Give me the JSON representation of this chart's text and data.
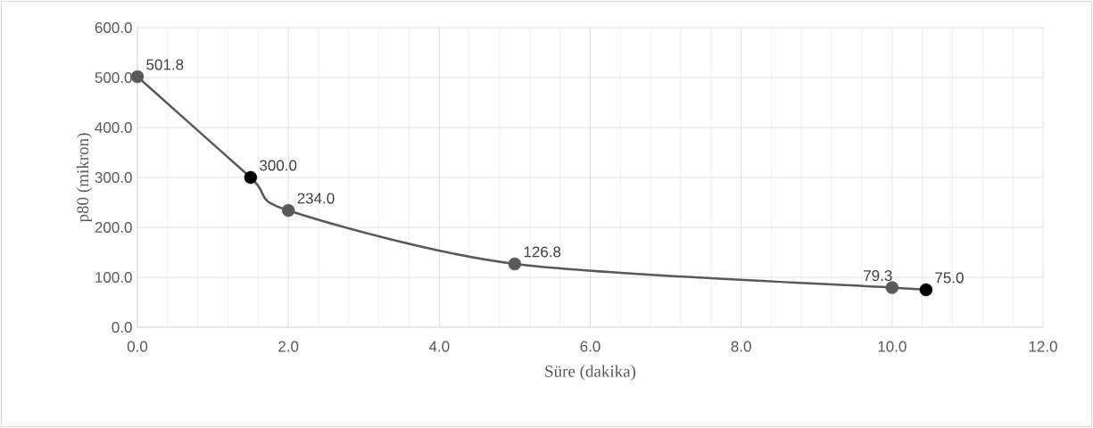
{
  "chart_data": {
    "type": "line",
    "xlabel": "Süre (dakika)",
    "ylabel": "p80 (mikron)",
    "x": [
      0,
      1.5,
      2,
      5,
      10,
      10.45
    ],
    "values": [
      501.8,
      300.0,
      234.0,
      126.8,
      79.3,
      75.0
    ],
    "value_labels": [
      "501.8",
      "300.0",
      "234.0",
      "126.8",
      "79.3",
      "75.0"
    ],
    "color": "#595959",
    "colors": [
      "#595959",
      "#000000",
      "#595959",
      "#595959",
      "#595959",
      "#000000"
    ],
    "marker": "circle",
    "xlim": [
      0,
      12
    ],
    "ylim": [
      0,
      600
    ],
    "xticks": [
      {
        "value": 0,
        "label": "0.0"
      },
      {
        "value": 2,
        "label": "2.0"
      },
      {
        "value": 4,
        "label": "4.0"
      },
      {
        "value": 6,
        "label": "6.0"
      },
      {
        "value": 8,
        "label": "8.0"
      },
      {
        "value": 10,
        "label": "10.0"
      },
      {
        "value": 12,
        "label": "12.0"
      }
    ],
    "yticks": [
      {
        "value": 0,
        "label": "0.0"
      },
      {
        "value": 100,
        "label": "100.0"
      },
      {
        "value": 200,
        "label": "200.0"
      },
      {
        "value": 300,
        "label": "300.0"
      },
      {
        "value": 400,
        "label": "400.0"
      },
      {
        "value": 500,
        "label": "500.0"
      },
      {
        "value": 600,
        "label": "600.0"
      }
    ],
    "grid": true
  }
}
